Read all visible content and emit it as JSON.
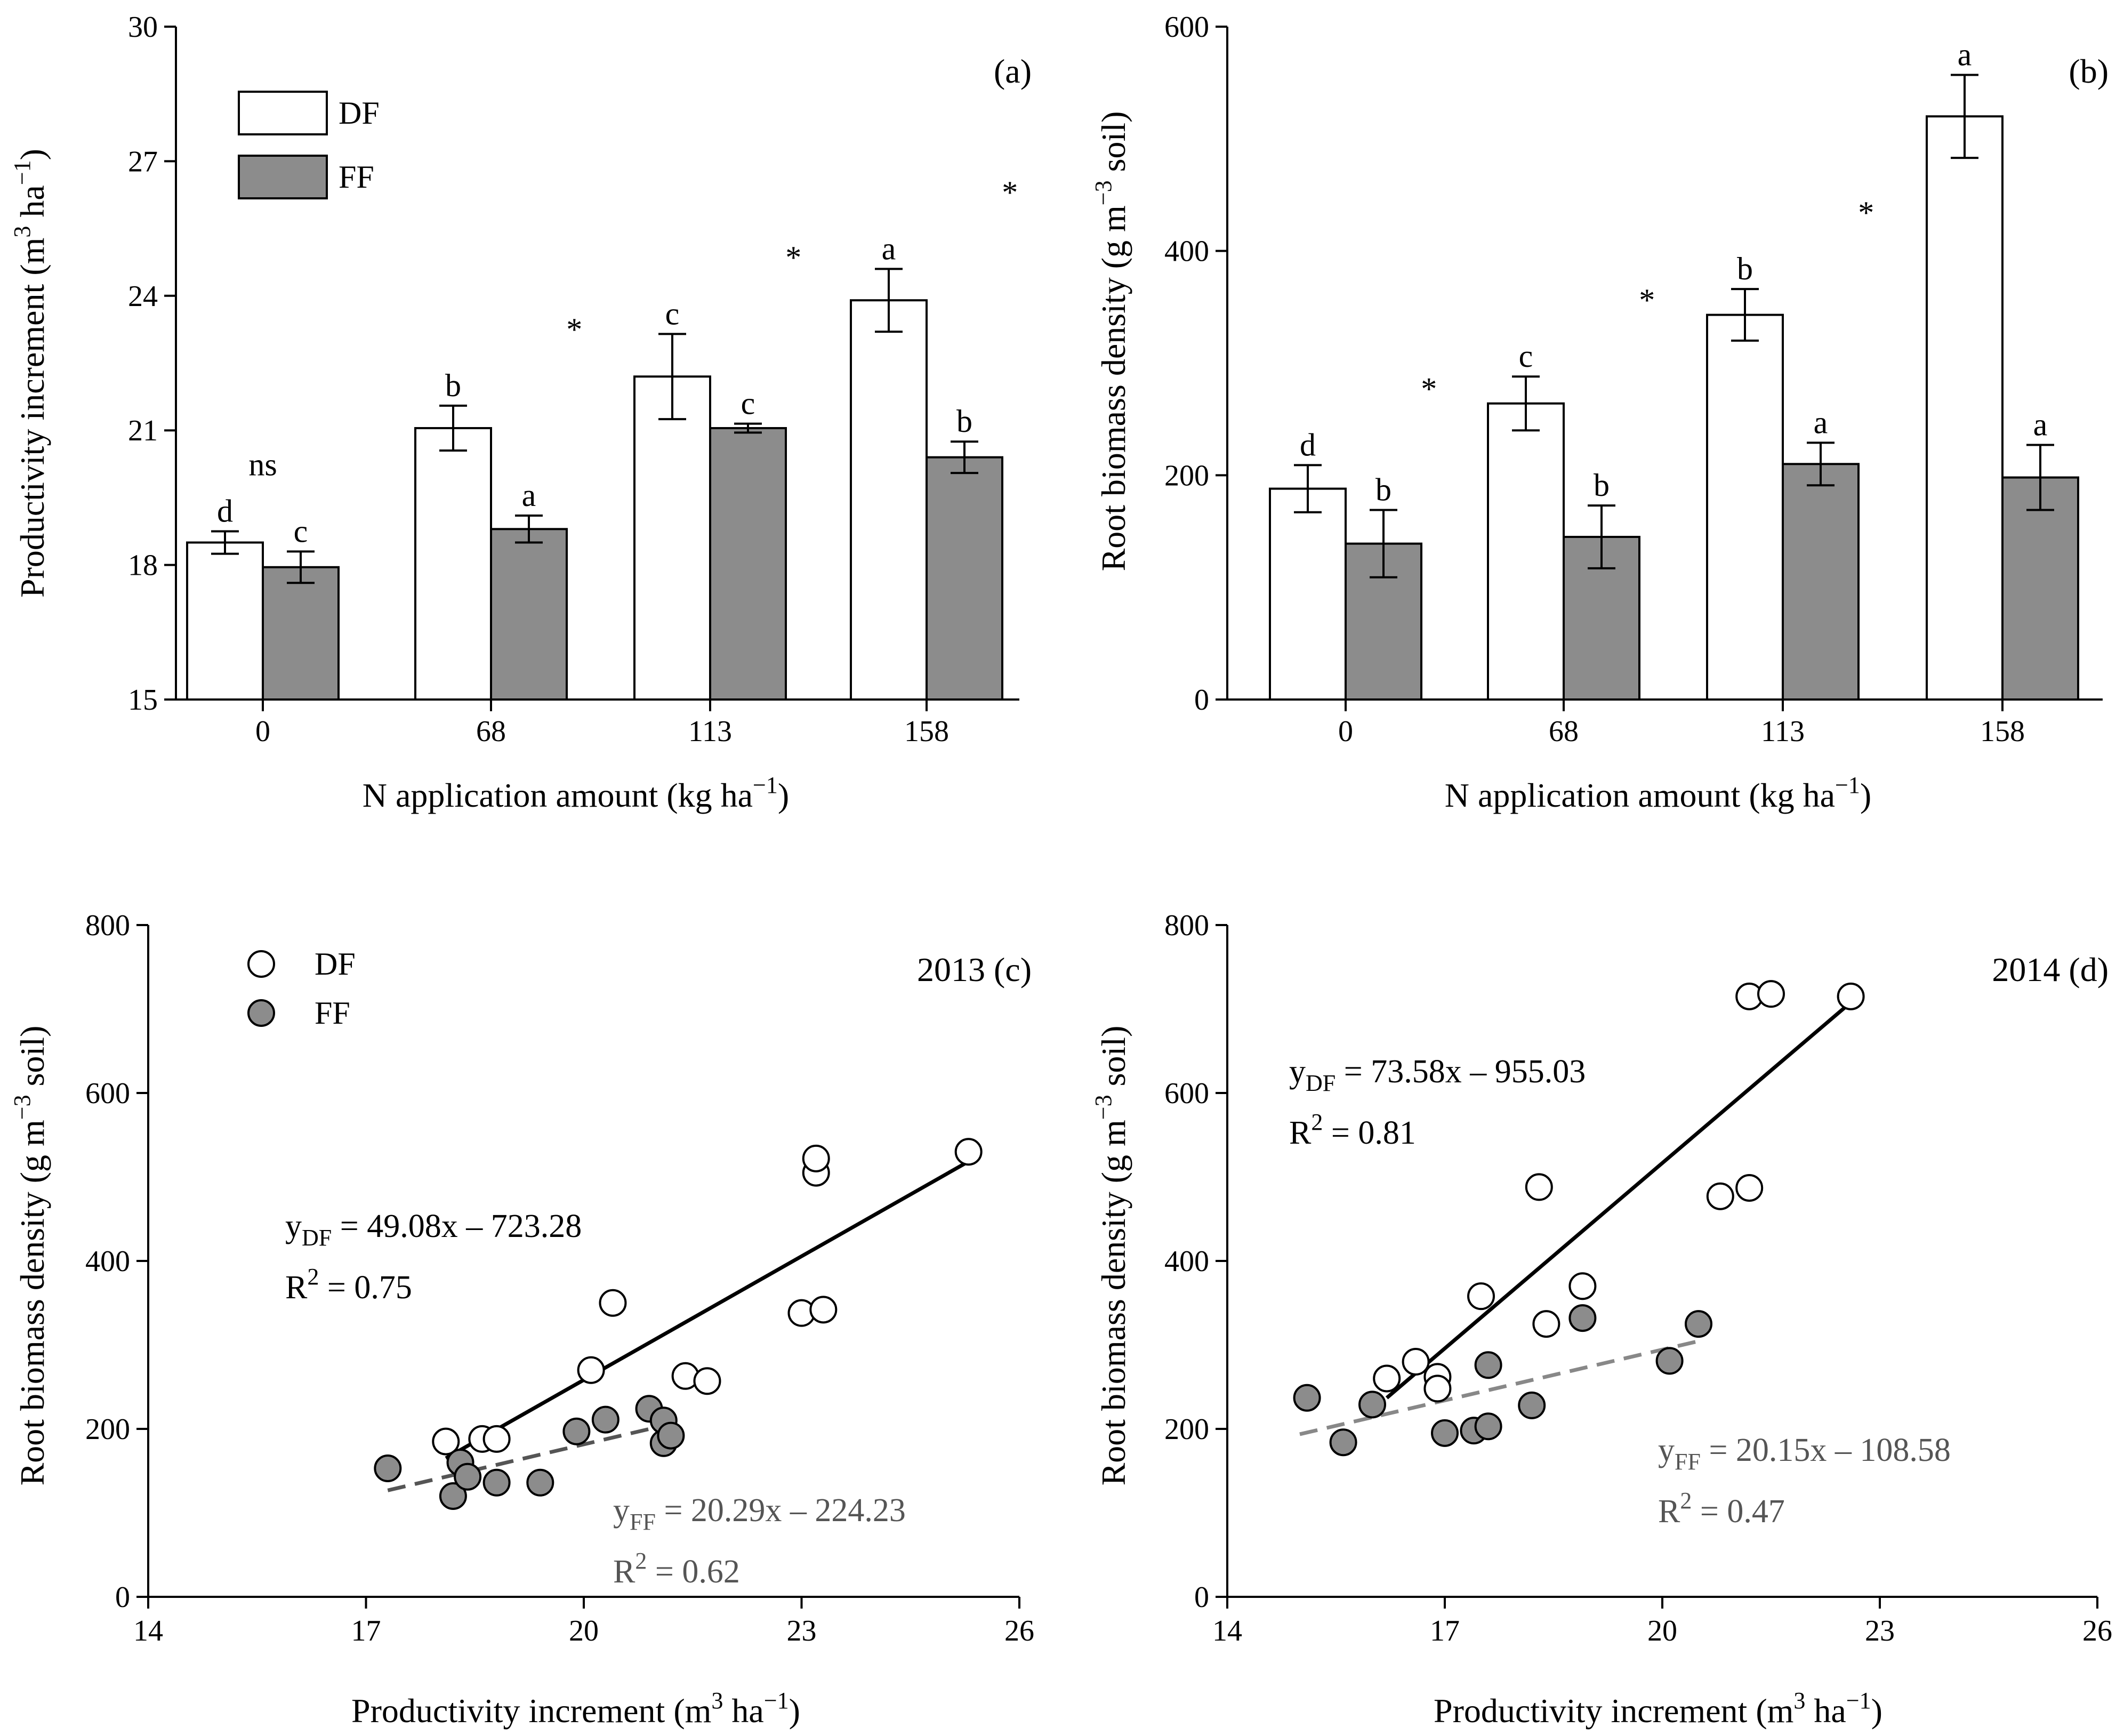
{
  "chart_data": [
    {
      "id": "a",
      "type": "bar",
      "panel_label": "(a)",
      "categories": [
        "0",
        "68",
        "113",
        "158"
      ],
      "xlabel": "N application amount (kg ha−1)",
      "ylabel": "Productivity increment (m3 ha−1)",
      "ylim": [
        15,
        30
      ],
      "yticks": [
        "15",
        "18",
        "21",
        "24",
        "27",
        "30"
      ],
      "legend": "top-left",
      "series": [
        {
          "name": "DF",
          "values": [
            18.5,
            21.05,
            22.2,
            23.9
          ],
          "errors": [
            0.25,
            0.5,
            0.95,
            0.7
          ],
          "letters": [
            "d",
            "b",
            "c",
            "a"
          ],
          "color": "#ffffff"
        },
        {
          "name": "FF",
          "values": [
            17.95,
            18.8,
            21.05,
            20.4
          ],
          "errors": [
            0.35,
            0.3,
            0.1,
            0.35
          ],
          "letters": [
            "c",
            "a",
            "c",
            "b"
          ],
          "color": "#8c8c8c"
        }
      ],
      "significance": [
        "ns",
        "*",
        "*",
        "*"
      ]
    },
    {
      "id": "b",
      "type": "bar",
      "panel_label": "(b)",
      "categories": [
        "0",
        "68",
        "113",
        "158"
      ],
      "xlabel": "N application amount (kg ha−1)",
      "ylabel": "Root biomass density (g m−3 soil)",
      "ylim": [
        0,
        600
      ],
      "yticks": [
        "0",
        "200",
        "400",
        "600"
      ],
      "series": [
        {
          "name": "DF",
          "values": [
            188,
            264,
            343,
            520
          ],
          "errors": [
            21,
            24,
            23,
            37
          ],
          "letters": [
            "d",
            "c",
            "b",
            "a"
          ],
          "color": "#ffffff"
        },
        {
          "name": "FF",
          "values": [
            139,
            145,
            210,
            198
          ],
          "errors": [
            30,
            28,
            19,
            29
          ],
          "letters": [
            "b",
            "b",
            "a",
            "a"
          ],
          "color": "#8c8c8c"
        }
      ],
      "significance": [
        "*",
        "*",
        "*",
        "*"
      ]
    },
    {
      "id": "c",
      "type": "scatter",
      "panel_label": "2013  (c)",
      "xlabel": "Productivity increment (m3 ha−1)",
      "ylabel": "Root biomass density (g m−3 soil)",
      "xlim": [
        14,
        26
      ],
      "ylim": [
        0,
        800
      ],
      "xticks": [
        "14",
        "17",
        "20",
        "23",
        "26"
      ],
      "yticks": [
        "0",
        "200",
        "400",
        "600",
        "800"
      ],
      "legend": "top-left",
      "series": [
        {
          "name": "DF",
          "color": "#ffffff",
          "points": [
            [
              18.1,
              185
            ],
            [
              18.6,
              188
            ],
            [
              18.8,
              188
            ],
            [
              20.1,
              270
            ],
            [
              20.4,
              350
            ],
            [
              21.4,
              263
            ],
            [
              21.7,
              257
            ],
            [
              23.0,
              338
            ],
            [
              23.3,
              342
            ],
            [
              23.2,
              505
            ],
            [
              23.2,
              522
            ],
            [
              25.3,
              530
            ]
          ],
          "fit": {
            "x": [
              18.1,
              25.3
            ],
            "eq_text": "y",
            "eq_sub": "DF",
            "eq_rest": " = 49.08x – 723.28",
            "r2_text": "R",
            "r2_sup": "2",
            "r2_rest": " = 0.75",
            "color": "#000000",
            "dashed": false
          }
        },
        {
          "name": "FF",
          "color": "#8c8c8c",
          "points": [
            [
              17.3,
              153
            ],
            [
              18.2,
              120
            ],
            [
              18.3,
              160
            ],
            [
              18.4,
              143
            ],
            [
              18.8,
              136
            ],
            [
              19.4,
              136
            ],
            [
              19.9,
              197
            ],
            [
              20.3,
              211
            ],
            [
              20.9,
              224
            ],
            [
              21.1,
              210
            ],
            [
              21.1,
              183
            ],
            [
              21.2,
              192
            ]
          ],
          "fit": {
            "x": [
              17.3,
              21.3
            ],
            "eq_text": "y",
            "eq_sub": "FF",
            "eq_rest": " = 20.29x – 224.23",
            "r2_text": "R",
            "r2_sup": "2",
            "r2_rest": " = 0.62",
            "color": "#555555",
            "dashed": true
          }
        }
      ]
    },
    {
      "id": "d",
      "type": "scatter",
      "panel_label": "2014 (d)",
      "xlabel": "Productivity increment (m3 ha−1)",
      "ylabel": "Root biomass density (g m−3 soil)",
      "xlim": [
        14,
        26
      ],
      "ylim": [
        0,
        800
      ],
      "xticks": [
        "14",
        "17",
        "20",
        "23",
        "26"
      ],
      "yticks": [
        "0",
        "200",
        "400",
        "600",
        "800"
      ],
      "series": [
        {
          "name": "DF",
          "color": "#ffffff",
          "points": [
            [
              16.2,
              260
            ],
            [
              16.6,
              280
            ],
            [
              16.9,
              262
            ],
            [
              16.9,
              248
            ],
            [
              17.5,
              358
            ],
            [
              18.3,
              488
            ],
            [
              18.4,
              325
            ],
            [
              18.9,
              370
            ],
            [
              20.8,
              477
            ],
            [
              21.2,
              487
            ],
            [
              21.2,
              715
            ],
            [
              21.5,
              718
            ],
            [
              22.6,
              715
            ]
          ],
          "fit": {
            "x": [
              16.2,
              22.6
            ],
            "eq_text": "y",
            "eq_sub": "DF",
            "eq_rest": " = 73.58x – 955.03",
            "r2_text": "R",
            "r2_sup": "2",
            "r2_rest": " = 0.81",
            "color": "#000000",
            "dashed": false
          }
        },
        {
          "name": "FF",
          "color": "#8c8c8c",
          "points": [
            [
              15.1,
              237
            ],
            [
              15.6,
              184
            ],
            [
              16.0,
              229
            ],
            [
              17.0,
              195
            ],
            [
              17.4,
              198
            ],
            [
              17.6,
              276
            ],
            [
              17.6,
              203
            ],
            [
              18.2,
              228
            ],
            [
              18.9,
              332
            ],
            [
              20.1,
              281
            ],
            [
              20.5,
              325
            ]
          ],
          "fit": {
            "x": [
              15.0,
              20.5
            ],
            "eq_text": "y",
            "eq_sub": "FF",
            "eq_rest": " = 20.15x – 108.58",
            "r2_text": "R",
            "r2_sup": "2",
            "r2_rest": " = 0.47",
            "color": "#888888",
            "dashed": true
          }
        }
      ]
    }
  ]
}
